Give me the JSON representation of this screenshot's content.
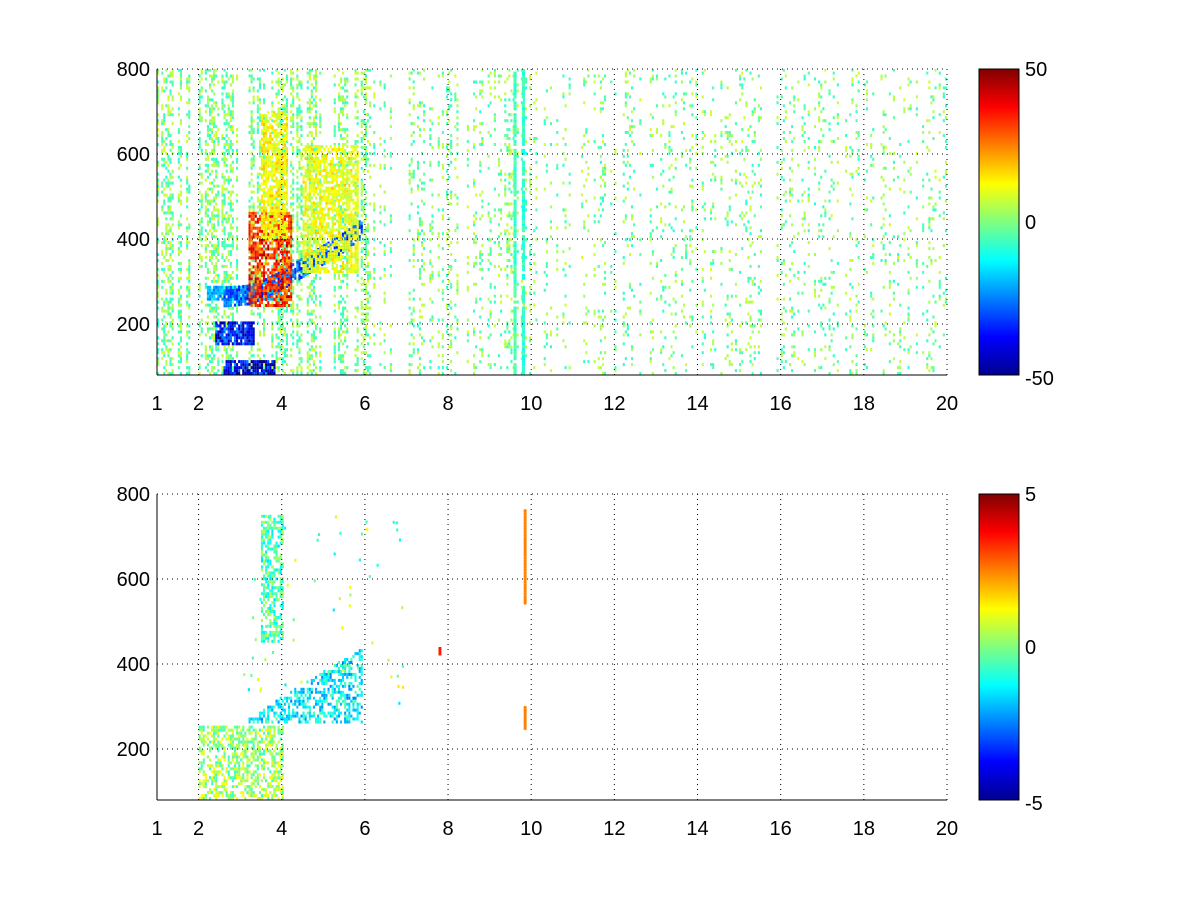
{
  "figure": {
    "background": "#ffffff"
  },
  "chart_data": [
    {
      "type": "heatmap",
      "title": "",
      "xlabel": "",
      "ylabel": "",
      "xlim": [
        1,
        20
      ],
      "ylim": [
        80,
        800
      ],
      "x_ticks": [
        1,
        2,
        4,
        6,
        8,
        10,
        12,
        14,
        16,
        18,
        20
      ],
      "y_ticks": [
        200,
        400,
        600,
        800
      ],
      "grid": true,
      "colormap": "jet",
      "clim": [
        -50,
        50
      ],
      "colorbar_ticks": [
        "50",
        "0",
        "-50"
      ],
      "features": [
        {
          "kind": "band",
          "x": [
            2.2,
            4.0
          ],
          "y": [
            255,
            290
          ],
          "value": -22
        },
        {
          "kind": "band",
          "x": [
            2.4,
            3.3
          ],
          "y": [
            150,
            200
          ],
          "value": -40
        },
        {
          "kind": "band",
          "x": [
            2.6,
            3.8
          ],
          "y": [
            80,
            110
          ],
          "value": -45
        },
        {
          "kind": "curve",
          "x": [
            2.6,
            3.2,
            3.6,
            4.0,
            4.5,
            5.0,
            5.5,
            5.9
          ],
          "y": [
            260,
            265,
            280,
            300,
            330,
            360,
            390,
            420
          ],
          "value": -28
        },
        {
          "kind": "blob",
          "x": [
            3.2,
            4.2
          ],
          "y": [
            240,
            460
          ],
          "value": 36
        },
        {
          "kind": "blob",
          "x": [
            3.5,
            4.1
          ],
          "y": [
            400,
            700
          ],
          "value": 14
        },
        {
          "kind": "blob",
          "x": [
            4.5,
            5.8
          ],
          "y": [
            320,
            620
          ],
          "value": 12
        },
        {
          "kind": "vline",
          "x": 9.6,
          "y": [
            80,
            800
          ],
          "value": -6
        },
        {
          "kind": "vline",
          "x": 9.8,
          "y": [
            80,
            800
          ],
          "value": -8
        }
      ]
    },
    {
      "type": "heatmap",
      "title": "",
      "xlabel": "",
      "ylabel": "",
      "xlim": [
        1,
        20
      ],
      "ylim": [
        80,
        800
      ],
      "x_ticks": [
        1,
        2,
        4,
        6,
        8,
        10,
        12,
        14,
        16,
        18,
        20
      ],
      "y_ticks": [
        200,
        400,
        600,
        800
      ],
      "grid": true,
      "colormap": "jet",
      "clim": [
        -5,
        5
      ],
      "colorbar_ticks": [
        "5",
        "0",
        "-5"
      ],
      "features": [
        {
          "kind": "region",
          "x": [
            2.0,
            4.0
          ],
          "y": [
            80,
            250
          ],
          "value": 0.3
        },
        {
          "kind": "region",
          "x": [
            3.0,
            5.9
          ],
          "y": [
            260,
            460
          ],
          "value": -1.4
        },
        {
          "kind": "region",
          "x": [
            3.5,
            4.0
          ],
          "y": [
            450,
            750
          ],
          "value": -0.5
        },
        {
          "kind": "segment",
          "x": 9.85,
          "y": [
            540,
            760
          ],
          "value": 2.5
        },
        {
          "kind": "segment",
          "x": 9.85,
          "y": [
            245,
            295
          ],
          "value": 2.5
        },
        {
          "kind": "spot",
          "x": 7.8,
          "y": 430,
          "value": 3.5
        }
      ]
    }
  ]
}
